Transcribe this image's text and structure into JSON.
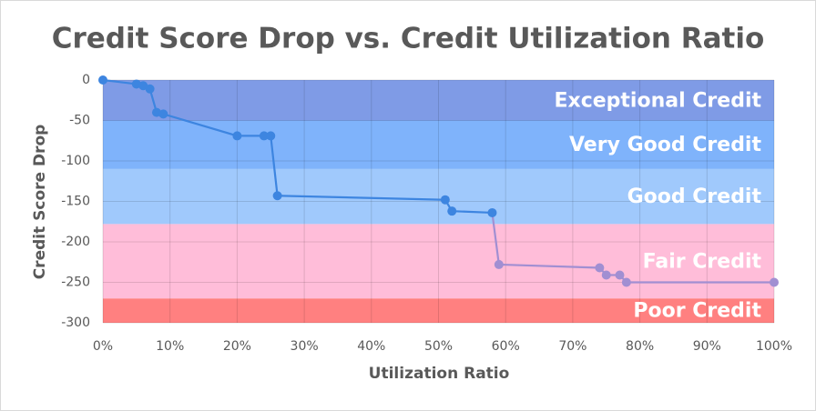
{
  "chart_data": {
    "type": "line",
    "title": "Credit Score Drop vs. Credit Utilization Ratio",
    "x_label": "Utilization Ratio",
    "y_label": "Credit Score Drop",
    "x": [
      0,
      5,
      6,
      7,
      8,
      9,
      20,
      24,
      25,
      26,
      51,
      52,
      58,
      59,
      74,
      75,
      77,
      78,
      100
    ],
    "values": [
      0,
      -5,
      -7,
      -11,
      -40,
      -42,
      -69,
      -69,
      -69,
      -143,
      -148,
      -162,
      -164,
      -228,
      -232,
      -241,
      -241,
      -250,
      -250
    ],
    "point_colors": [
      "#3d85e0",
      "#3d85e0",
      "#3d85e0",
      "#3d85e0",
      "#3d85e0",
      "#3d85e0",
      "#3d85e0",
      "#3d85e0",
      "#3d85e0",
      "#3d85e0",
      "#3d85e0",
      "#3d85e0",
      "#3d85e0",
      "#a18fd2",
      "#a18fd2",
      "#a18fd2",
      "#a18fd2",
      "#a18fd2",
      "#a18fd2"
    ],
    "xlim": [
      0,
      100
    ],
    "ylim": [
      -300,
      0
    ],
    "xticks": [
      {
        "value": 0,
        "label": "0%"
      },
      {
        "value": 10,
        "label": "10%"
      },
      {
        "value": 20,
        "label": "20%"
      },
      {
        "value": 30,
        "label": "30%"
      },
      {
        "value": 40,
        "label": "40%"
      },
      {
        "value": 50,
        "label": "50%"
      },
      {
        "value": 60,
        "label": "60%"
      },
      {
        "value": 70,
        "label": "70%"
      },
      {
        "value": 80,
        "label": "80%"
      },
      {
        "value": 90,
        "label": "90%"
      },
      {
        "value": 100,
        "label": "100%"
      }
    ],
    "yticks": [
      0,
      -50,
      -100,
      -150,
      -200,
      -250,
      -300
    ],
    "grid": true,
    "bands": [
      {
        "label": "Exceptional Credit",
        "from": 0,
        "to": -50,
        "color": "#7f9be6"
      },
      {
        "label": "Very Good Credit",
        "from": -50,
        "to": -110,
        "color": "#7fb3fb"
      },
      {
        "label": "Good Credit",
        "from": -110,
        "to": -178,
        "color": "#a0c9fc"
      },
      {
        "label": "Fair Credit",
        "from": -178,
        "to": -270,
        "color": "#ffbdd9"
      },
      {
        "label": "Poor Credit",
        "from": -270,
        "to": -300,
        "color": "#ff8080"
      }
    ]
  }
}
